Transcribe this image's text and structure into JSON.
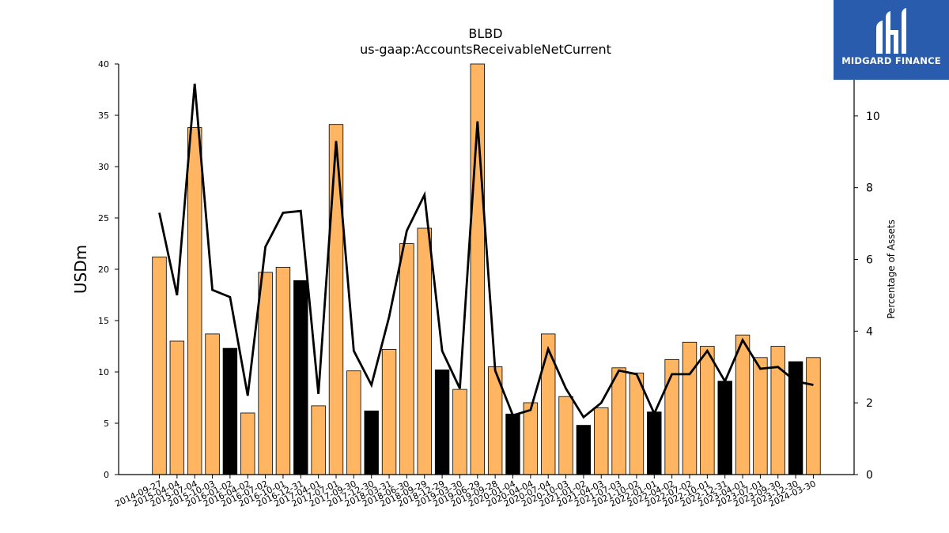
{
  "chart_data": {
    "type": "bar",
    "title": "BLBD",
    "subtitle": "us-gaap:AccountsReceivableNetCurrent",
    "ylabel": "USDm",
    "y2label": "Percentage of Assets",
    "ylim": [
      0,
      40
    ],
    "y2lim": [
      0,
      11.45
    ],
    "yticks": [
      0,
      5,
      10,
      15,
      20,
      25,
      30,
      35,
      40
    ],
    "y2ticks": [
      0,
      2,
      4,
      6,
      8,
      10
    ],
    "categories": [
      "2014-09-27",
      "2015-04-04",
      "2015-07-04",
      "2015-10-03",
      "2016-01-02",
      "2016-04-02",
      "2016-07-02",
      "2016-10-01",
      "2016-12-31",
      "2017-04-01",
      "2017-07-01",
      "2017-09-30",
      "2017-12-30",
      "2018-03-31",
      "2018-06-30",
      "2018-09-29",
      "2018-12-29",
      "2019-03-30",
      "2019-06-29",
      "2019-09-28",
      "2020-01-04",
      "2020-04-04",
      "2020-07-04",
      "2020-10-03",
      "2021-01-02",
      "2021-04-03",
      "2021-07-03",
      "2021-10-02",
      "2022-01-01",
      "2022-04-02",
      "2022-07-02",
      "2022-10-01",
      "2022-12-31",
      "2023-04-01",
      "2023-07-01",
      "2023-09-30",
      "2023-12-30",
      "2024-03-30"
    ],
    "series": [
      {
        "kind": "bar",
        "values": [
          21.2,
          13.0,
          33.8,
          13.7,
          12.3,
          6.0,
          19.7,
          20.2,
          18.9,
          6.7,
          34.1,
          10.1,
          6.2,
          12.2,
          22.5,
          24.0,
          10.2,
          8.3,
          40.0,
          10.5,
          5.9,
          7.0,
          13.7,
          7.6,
          4.8,
          6.5,
          10.4,
          9.9,
          6.1,
          11.2,
          12.9,
          12.5,
          9.1,
          13.6,
          11.4,
          12.5,
          11.0,
          11.4
        ],
        "highlight": [
          false,
          false,
          false,
          false,
          true,
          false,
          false,
          false,
          true,
          false,
          false,
          false,
          true,
          false,
          false,
          false,
          true,
          false,
          false,
          false,
          true,
          false,
          false,
          false,
          true,
          false,
          false,
          false,
          true,
          false,
          false,
          false,
          true,
          false,
          false,
          false,
          true,
          false
        ]
      },
      {
        "kind": "line",
        "axis": "right",
        "values": [
          7.3,
          5.0,
          10.9,
          5.15,
          4.95,
          2.2,
          6.35,
          7.3,
          7.35,
          2.25,
          9.3,
          3.45,
          2.5,
          4.4,
          6.8,
          7.8,
          3.45,
          2.4,
          9.85,
          2.9,
          1.65,
          1.8,
          3.5,
          2.4,
          1.6,
          2.0,
          2.9,
          2.8,
          1.7,
          2.8,
          2.8,
          3.45,
          2.6,
          3.75,
          2.95,
          3.0,
          2.6,
          2.5
        ]
      }
    ],
    "colors": {
      "bar": "#ffb562",
      "bar_highlight": "#000000",
      "line": "#000000"
    }
  },
  "logo": {
    "text": "MIDGARD FINANCE"
  }
}
